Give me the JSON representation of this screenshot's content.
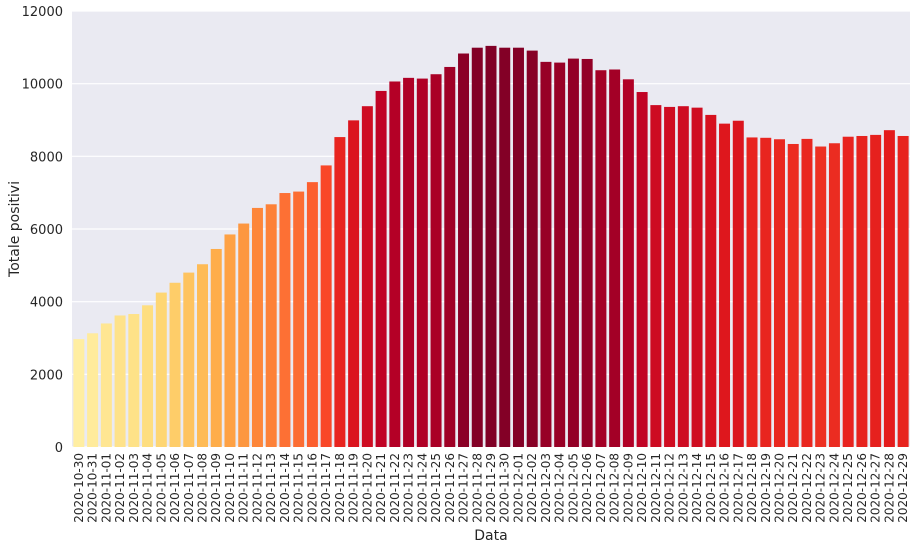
{
  "chart_data": {
    "type": "bar",
    "xlabel": "Data",
    "ylabel": "Totale positivi",
    "ylim": [
      0,
      12000
    ],
    "yticks": [
      0,
      2000,
      4000,
      6000,
      8000,
      10000,
      12000
    ],
    "grid": true,
    "legend": "none",
    "background_color": "#eaeaf2",
    "grid_color": "#ffffff",
    "palette": "YlOrRd (color by value)",
    "categories": [
      "2020-10-30",
      "2020-10-31",
      "2020-11-01",
      "2020-11-02",
      "2020-11-03",
      "2020-11-04",
      "2020-11-05",
      "2020-11-06",
      "2020-11-07",
      "2020-11-08",
      "2020-11-09",
      "2020-11-10",
      "2020-11-11",
      "2020-11-12",
      "2020-11-13",
      "2020-11-14",
      "2020-11-15",
      "2020-11-16",
      "2020-11-17",
      "2020-11-18",
      "2020-11-19",
      "2020-11-20",
      "2020-11-21",
      "2020-11-22",
      "2020-11-23",
      "2020-11-24",
      "2020-11-25",
      "2020-11-26",
      "2020-11-27",
      "2020-11-28",
      "2020-11-29",
      "2020-11-30",
      "2020-12-01",
      "2020-12-02",
      "2020-12-03",
      "2020-12-04",
      "2020-12-05",
      "2020-12-06",
      "2020-12-07",
      "2020-12-08",
      "2020-12-09",
      "2020-12-10",
      "2020-12-11",
      "2020-12-12",
      "2020-12-13",
      "2020-12-14",
      "2020-12-15",
      "2020-12-16",
      "2020-12-17",
      "2020-12-18",
      "2020-12-19",
      "2020-12-20",
      "2020-12-21",
      "2020-12-22",
      "2020-12-23",
      "2020-12-24",
      "2020-12-25",
      "2020-12-26",
      "2020-12-27",
      "2020-12-28",
      "2020-12-29"
    ],
    "values": [
      2970,
      3130,
      3400,
      3620,
      3660,
      3900,
      4250,
      4520,
      4800,
      5030,
      5450,
      5850,
      6150,
      6580,
      6680,
      6990,
      7030,
      7290,
      7750,
      8530,
      8990,
      9380,
      9800,
      10060,
      10160,
      10140,
      10260,
      10460,
      10830,
      10990,
      11040,
      10990,
      10990,
      10910,
      10600,
      10580,
      10690,
      10680,
      10370,
      10390,
      10120,
      9770,
      9410,
      9360,
      9380,
      9340,
      9140,
      8900,
      8980,
      8520,
      8510,
      8470,
      8340,
      8480,
      8270,
      8360,
      8540,
      8560,
      8590,
      8720,
      8560
    ]
  }
}
